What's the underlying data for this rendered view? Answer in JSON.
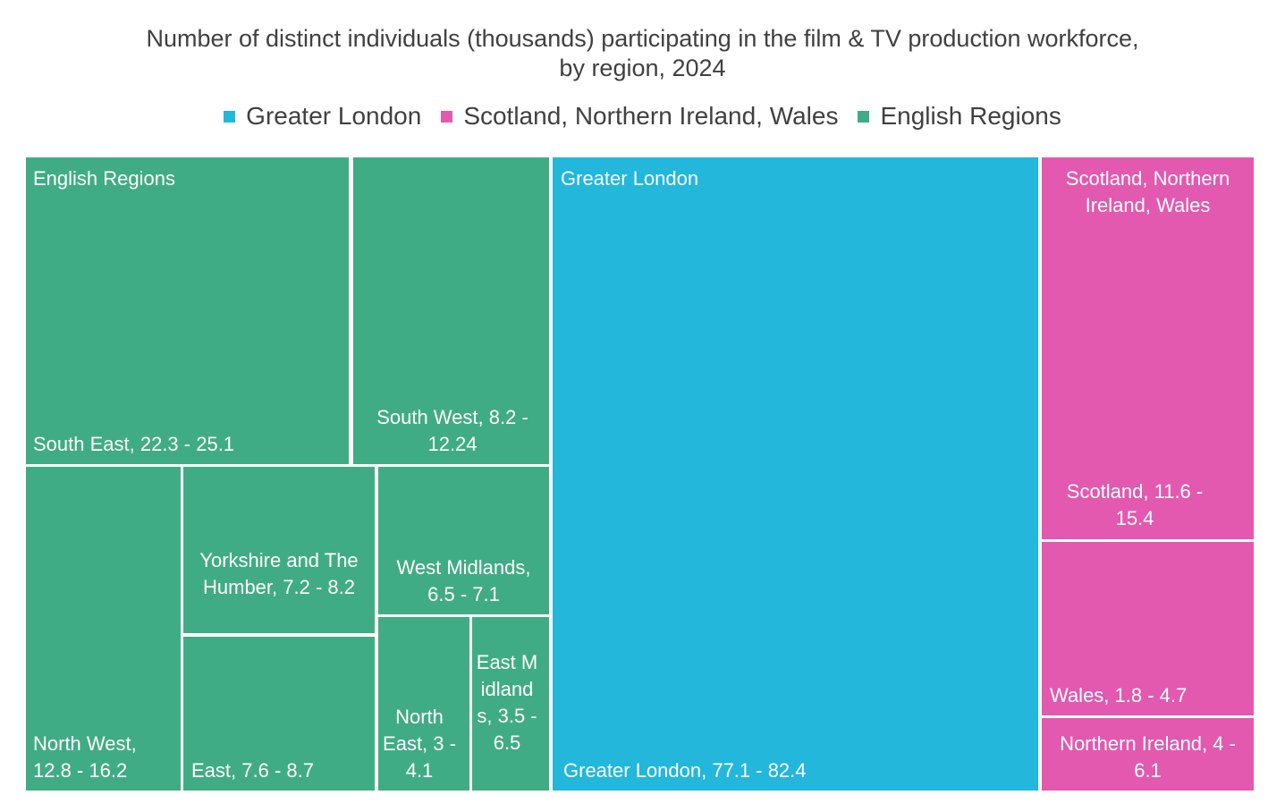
{
  "chart_data": {
    "type": "treemap",
    "title_line1": "Number of distinct individuals (thousands) participating in the film & TV production workforce,",
    "title_line2": "by region, 2024",
    "colors": {
      "greater_london": "#22B7DB",
      "snw": "#E259AF",
      "english_regions": "#40AC85"
    },
    "legend": [
      {
        "name": "Greater London",
        "color": "#22B7DB"
      },
      {
        "name": "Scotland, Northern Ireland, Wales",
        "color": "#E259AF"
      },
      {
        "name": "English Regions",
        "color": "#40AC85"
      }
    ],
    "groups": [
      {
        "name": "English Regions",
        "color": "#40AC85",
        "items": [
          {
            "region": "South East",
            "low": 22.3,
            "high": 25.1,
            "label": "South East, 22.3 - 25.1"
          },
          {
            "region": "South West",
            "low": 8.2,
            "high": 12.24,
            "label": "South West, 8.2 - 12.24"
          },
          {
            "region": "North West",
            "low": 12.8,
            "high": 16.2,
            "label": "North West, 12.8 - 16.2"
          },
          {
            "region": "Yorkshire and The Humber",
            "low": 7.2,
            "high": 8.2,
            "label": "Yorkshire and The Humber, 7.2 - 8.2"
          },
          {
            "region": "West Midlands",
            "low": 6.5,
            "high": 7.1,
            "label": "West Midlands, 6.5 - 7.1"
          },
          {
            "region": "East",
            "low": 7.6,
            "high": 8.7,
            "label": "East, 7.6 - 8.7"
          },
          {
            "region": "North East",
            "low": 3,
            "high": 4.1,
            "label": "North East, 3 - 4.1"
          },
          {
            "region": "East Midlands",
            "low": 3.5,
            "high": 6.5,
            "label": "East Midlands, 3.5 - 6.5"
          }
        ]
      },
      {
        "name": "Greater London",
        "color": "#22B7DB",
        "items": [
          {
            "region": "Greater London",
            "low": 77.1,
            "high": 82.4,
            "label": "Greater London, 77.1 - 82.4"
          }
        ]
      },
      {
        "name": "Scotland, Northern Ireland, Wales",
        "color": "#E259AF",
        "items": [
          {
            "region": "Scotland",
            "low": 11.6,
            "high": 15.4,
            "label": "Scotland, 11.6 - 15.4"
          },
          {
            "region": "Wales",
            "low": 1.8,
            "high": 4.7,
            "label": "Wales, 1.8 - 4.7"
          },
          {
            "region": "Northern Ireland",
            "low": 4,
            "high": 6.1,
            "label": "Northern Ireland, 4 - 6.1"
          }
        ]
      }
    ]
  }
}
